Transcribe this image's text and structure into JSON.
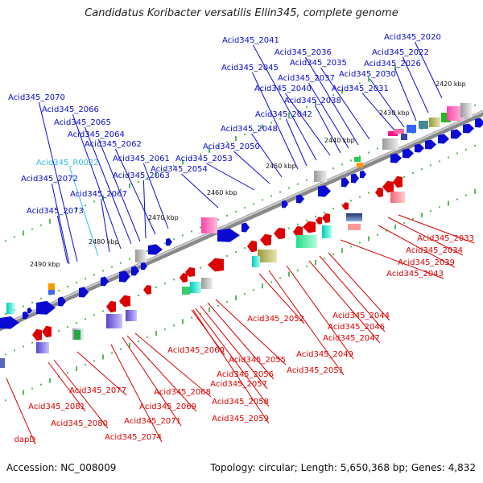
{
  "title": "Candidatus Koribacter versatilis Ellin345, complete genome",
  "footer": {
    "accession": "Accession: NC_008009",
    "topology": "Topology: circular; Length: 5,650,368 bp; Genes: 4,832"
  },
  "colors": {
    "forward_strand": "#0a0ad2",
    "reverse_strand": "#dd0000",
    "rna_label": "#33bbe6",
    "axis": "#999999",
    "tick": "#119911"
  },
  "ticks": [
    "2420 kbp",
    "2430 kbp",
    "2440 kbp",
    "2450 kbp",
    "2460 kbp",
    "2470 kbp",
    "2480 kbp",
    "2490 kbp"
  ],
  "forward_labels": [
    "Acid345_2020",
    "Acid345_2022",
    "Acid345_2026",
    "Acid345_2030",
    "Acid345_2031",
    "Acid345_2035",
    "Acid345_2036",
    "Acid345_2037",
    "Acid345_2038",
    "Acid345_2040",
    "Acid345_2041",
    "Acid345_2042",
    "Acid345_2045",
    "Acid345_2048",
    "Acid345_2050",
    "Acid345_2053",
    "Acid345_2054",
    "Acid345_2061",
    "Acid345_2062",
    "Acid345_2063",
    "Acid345_2064",
    "Acid345_2065",
    "Acid345_2066",
    "Acid345_2067",
    "Acid345_2070",
    "Acid345_2072",
    "Acid345_2073"
  ],
  "rna_labels": [
    "Acid345_R0022"
  ],
  "reverse_labels": [
    "Acid345_2033",
    "Acid345_2034",
    "Acid345_2039",
    "Acid345_2043",
    "Acid345_2044",
    "Acid345_2046",
    "Acid345_2047",
    "Acid345_2049",
    "Acid345_2051",
    "Acid345_2052",
    "Acid345_2055",
    "Acid345_2056",
    "Acid345_2057",
    "Acid345_2058",
    "Acid345_2059",
    "Acid345_2060",
    "Acid345_2068",
    "Acid345_2069",
    "Acid345_2071",
    "Acid345_2074",
    "Acid345_2077",
    "Acid345_2080",
    "Acid345_2081",
    "dapD"
  ]
}
